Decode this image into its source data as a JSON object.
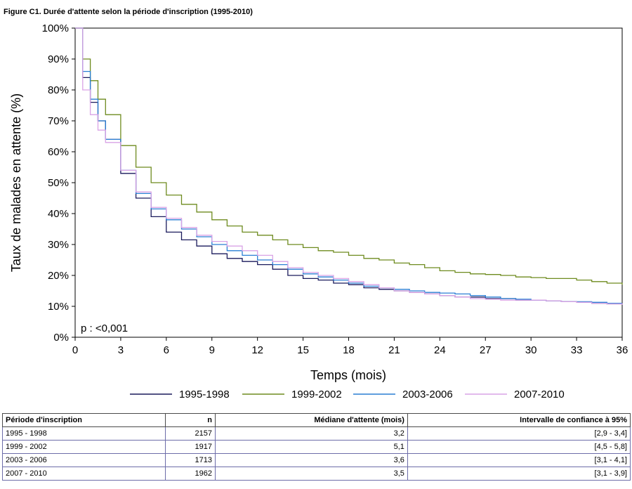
{
  "figure_title": "Figure C1. Durée d'attente selon la période d'inscription (1995-2010)",
  "chart_data": {
    "type": "line",
    "title": "Figure C1. Durée d'attente selon la période d'inscription (1995-2010)",
    "xlabel": "Temps (mois)",
    "ylabel": "Taux de malades en attente (%)",
    "xlim": [
      0,
      36
    ],
    "ylim": [
      0,
      100
    ],
    "x_ticks": [
      0,
      3,
      6,
      9,
      12,
      15,
      18,
      21,
      24,
      27,
      30,
      33,
      36
    ],
    "y_ticks": [
      0,
      10,
      20,
      30,
      40,
      50,
      60,
      70,
      80,
      90,
      100
    ],
    "y_tick_labels": [
      "0%",
      "10%",
      "20%",
      "30%",
      "40%",
      "50%",
      "60%",
      "70%",
      "80%",
      "90%",
      "100%"
    ],
    "grid": false,
    "legend_position": "bottom",
    "annotation": "p : <0,001",
    "series": [
      {
        "name": "1995-1998",
        "color": "#1a1a5c",
        "x": [
          0,
          0.5,
          1,
          1.5,
          2,
          3,
          4,
          5,
          6,
          7,
          8,
          9,
          10,
          11,
          12,
          13,
          14,
          15,
          16,
          17,
          18,
          19,
          20,
          21,
          22,
          23,
          24,
          25,
          26,
          27,
          28,
          29,
          30,
          31,
          32,
          33,
          34,
          35,
          36
        ],
        "y": [
          100,
          84,
          76,
          70,
          64,
          53,
          45,
          39,
          34,
          31.5,
          29.5,
          27,
          25.5,
          24.5,
          23.5,
          22,
          20,
          19,
          18.5,
          17.5,
          17,
          16,
          15.5,
          15,
          14.5,
          14,
          13.5,
          13,
          13,
          12.5,
          12.5,
          12,
          12,
          11.8,
          11.5,
          11.3,
          11,
          10.8,
          10.5
        ]
      },
      {
        "name": "1999-2002",
        "color": "#6e8b1f",
        "x": [
          0,
          0.5,
          1,
          1.5,
          2,
          3,
          4,
          5,
          6,
          7,
          8,
          9,
          10,
          11,
          12,
          13,
          14,
          15,
          16,
          17,
          18,
          19,
          20,
          21,
          22,
          23,
          24,
          25,
          26,
          27,
          28,
          29,
          30,
          31,
          32,
          33,
          34,
          35,
          36
        ],
        "y": [
          100,
          90,
          83,
          77,
          72,
          62,
          55,
          50,
          46,
          43,
          40.5,
          38,
          36,
          34,
          33,
          31.5,
          30,
          29,
          28,
          27.5,
          26.5,
          25.5,
          25,
          24,
          23.5,
          22.5,
          21.5,
          21,
          20.5,
          20.3,
          20,
          19.5,
          19.3,
          19,
          19,
          18.5,
          18,
          17.5,
          17
        ]
      },
      {
        "name": "2003-2006",
        "color": "#2a7fd4",
        "x": [
          0,
          0.5,
          1,
          1.5,
          2,
          3,
          4,
          5,
          6,
          7,
          8,
          9,
          10,
          11,
          12,
          13,
          14,
          15,
          16,
          17,
          18,
          19,
          20,
          21,
          22,
          23,
          24,
          25,
          26,
          27,
          28,
          29,
          30,
          31,
          32,
          33,
          34,
          35,
          36
        ],
        "y": [
          100,
          86,
          77,
          70,
          64,
          54,
          46.5,
          41.5,
          38,
          35,
          32.5,
          30,
          28,
          26.5,
          25,
          23.5,
          22,
          20.5,
          19.5,
          18.5,
          17.5,
          16.5,
          16,
          15.5,
          15,
          14.5,
          14.3,
          14,
          13.5,
          13,
          12.5,
          12.3,
          12,
          11.8,
          11.5,
          11.5,
          11.3,
          11,
          11
        ]
      },
      {
        "name": "2007-2010",
        "color": "#d9a3e6",
        "x": [
          0,
          0.5,
          1,
          1.5,
          2,
          3,
          4,
          5,
          6,
          7,
          8,
          9,
          10,
          11,
          12,
          13,
          14,
          15,
          16,
          17,
          18,
          19,
          20,
          21,
          22,
          23,
          24,
          25,
          26,
          27,
          28,
          29,
          30,
          31,
          32,
          33,
          34,
          35,
          36
        ],
        "y": [
          100,
          80,
          72,
          67,
          63,
          54,
          47,
          42,
          38.5,
          35.5,
          33,
          31,
          29.5,
          28,
          26.5,
          24.5,
          22.5,
          21,
          20,
          19,
          18,
          17,
          16,
          15,
          14.5,
          14,
          13.5,
          13,
          12.5,
          12.3,
          12,
          12,
          12,
          11.8,
          11.5,
          11.3,
          11,
          10.8,
          10.5
        ]
      }
    ]
  },
  "table": {
    "headers": [
      "Période d'inscription",
      "n",
      "Médiane d'attente (mois)",
      "Intervalle de confiance à 95%"
    ],
    "rows": [
      [
        "1995 - 1998",
        "2157",
        "3,2",
        "[2,9 - 3,4]"
      ],
      [
        "1999 - 2002",
        "1917",
        "5,1",
        "[4,5 - 5,8]"
      ],
      [
        "2003 - 2006",
        "1713",
        "3,6",
        "[3,1 - 4,1]"
      ],
      [
        "2007 - 2010",
        "1962",
        "3,5",
        "[3,1 - 3,9]"
      ]
    ]
  }
}
